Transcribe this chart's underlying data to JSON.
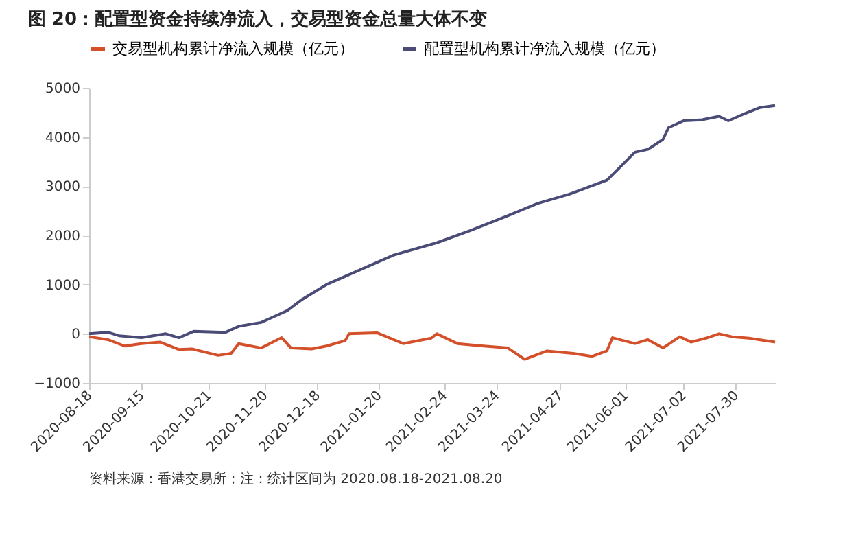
{
  "chart_data": {
    "type": "line",
    "title": "图 20：配置型资金持续净流入，交易型资金总量大体不变",
    "annotations": [
      "资料来源：香港交易所；注：统计区间为 2020.08.18-2021.08.20"
    ],
    "xlim": [
      "2020-08-18",
      "2021-08-20"
    ],
    "xticks": [
      "2020-08-18",
      "2020-09-15",
      "2020-10-21",
      "2020-11-20",
      "2020-12-18",
      "2021-01-20",
      "2021-02-24",
      "2021-03-24",
      "2021-04-27",
      "2021-06-01",
      "2021-07-02",
      "2021-07-30"
    ],
    "ylim": [
      -1000,
      5000
    ],
    "yticks": [
      -1000,
      0,
      1000,
      2000,
      3000,
      4000,
      5000
    ],
    "grid": false,
    "legend": "top",
    "line_style": "solid",
    "marker": "none",
    "series": [
      {
        "name": "交易型机构累计净流入规模（亿元）",
        "color": "#d4502a",
        "x": [
          "2020-08-18",
          "2020-08-28",
          "2020-09-06",
          "2020-09-15",
          "2020-09-25",
          "2020-10-05",
          "2020-10-12",
          "2020-10-26",
          "2020-11-02",
          "2020-11-06",
          "2020-11-18",
          "2020-11-29",
          "2020-12-04",
          "2020-12-15",
          "2020-12-23",
          "2021-01-02",
          "2021-01-04",
          "2021-01-19",
          "2021-02-02",
          "2021-02-17",
          "2021-02-20",
          "2021-03-03",
          "2021-03-17",
          "2021-03-30",
          "2021-04-08",
          "2021-04-20",
          "2021-05-04",
          "2021-05-14",
          "2021-05-22",
          "2021-05-25",
          "2021-06-06",
          "2021-06-13",
          "2021-06-21",
          "2021-06-30",
          "2021-07-06",
          "2021-07-14",
          "2021-07-21",
          "2021-07-28",
          "2021-08-06",
          "2021-08-20"
        ],
        "values": [
          -60,
          -120,
          -250,
          -200,
          -170,
          -320,
          -310,
          -440,
          -400,
          -200,
          -290,
          -80,
          -290,
          -310,
          -250,
          -140,
          0,
          20,
          -200,
          -90,
          0,
          -200,
          -250,
          -290,
          -520,
          -350,
          -400,
          -460,
          -350,
          -80,
          -200,
          -120,
          -290,
          -60,
          -170,
          -90,
          0,
          -60,
          -90,
          -170
        ]
      },
      {
        "name": "配置型机构累计净流入规模（亿元）",
        "color": "#4b4b78",
        "x": [
          "2020-08-18",
          "2020-08-28",
          "2020-09-03",
          "2020-09-15",
          "2020-09-28",
          "2020-10-05",
          "2020-10-13",
          "2020-10-30",
          "2020-11-06",
          "2020-11-18",
          "2020-11-25",
          "2020-12-02",
          "2020-12-10",
          "2020-12-23",
          "2021-01-10",
          "2021-01-28",
          "2021-02-20",
          "2021-03-10",
          "2021-03-30",
          "2021-04-15",
          "2021-05-02",
          "2021-05-22",
          "2021-06-06",
          "2021-06-13",
          "2021-06-21",
          "2021-06-24",
          "2021-07-02",
          "2021-07-12",
          "2021-07-21",
          "2021-07-26",
          "2021-08-04",
          "2021-08-12",
          "2021-08-20"
        ],
        "values": [
          0,
          30,
          -40,
          -80,
          0,
          -80,
          50,
          30,
          150,
          230,
          350,
          470,
          700,
          1000,
          1300,
          1600,
          1850,
          2100,
          2400,
          2650,
          2840,
          3120,
          3690,
          3750,
          3950,
          4190,
          4330,
          4350,
          4420,
          4330,
          4480,
          4600,
          4640
        ]
      }
    ]
  }
}
